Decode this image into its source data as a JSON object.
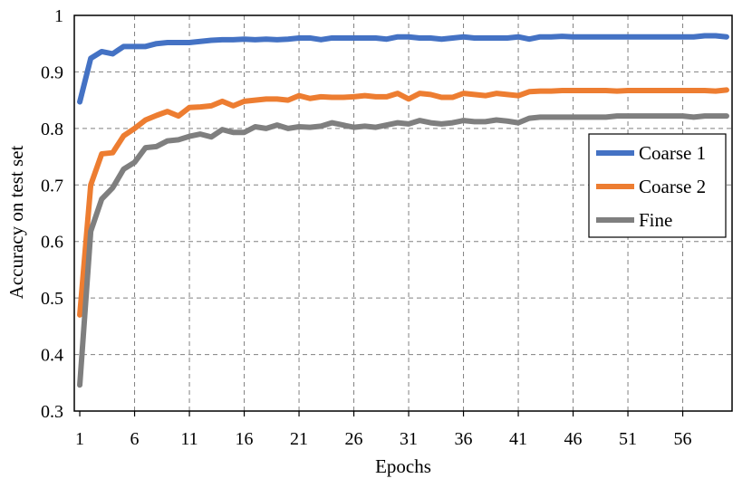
{
  "chart_data": {
    "type": "line",
    "xlabel": "Epochs",
    "ylabel": "Accuracy on test set",
    "x_ticks": [
      "1",
      "6",
      "11",
      "16",
      "21",
      "26",
      "31",
      "36",
      "41",
      "46",
      "51",
      "56"
    ],
    "y_ticks": [
      "0.3",
      "0.4",
      "0.5",
      "0.6",
      "0.7",
      "0.8",
      "0.9",
      "1"
    ],
    "xlim": [
      1,
      60
    ],
    "ylim": [
      0.3,
      1.0
    ],
    "grid": true,
    "legend_position": "right",
    "x": [
      1,
      2,
      3,
      4,
      5,
      6,
      7,
      8,
      9,
      10,
      11,
      12,
      13,
      14,
      15,
      16,
      17,
      18,
      19,
      20,
      21,
      22,
      23,
      24,
      25,
      26,
      27,
      28,
      29,
      30,
      31,
      32,
      33,
      34,
      35,
      36,
      37,
      38,
      39,
      40,
      41,
      42,
      43,
      44,
      45,
      46,
      47,
      48,
      49,
      50,
      51,
      52,
      53,
      54,
      55,
      56,
      57,
      58,
      59,
      60
    ],
    "series": [
      {
        "name": "Coarse 1",
        "color": "#4472C4",
        "values": [
          0.847,
          0.924,
          0.936,
          0.932,
          0.945,
          0.945,
          0.945,
          0.95,
          0.952,
          0.952,
          0.952,
          0.954,
          0.956,
          0.957,
          0.957,
          0.958,
          0.957,
          0.958,
          0.957,
          0.958,
          0.96,
          0.96,
          0.957,
          0.96,
          0.96,
          0.96,
          0.96,
          0.96,
          0.958,
          0.962,
          0.962,
          0.96,
          0.96,
          0.958,
          0.96,
          0.962,
          0.96,
          0.96,
          0.96,
          0.96,
          0.962,
          0.958,
          0.962,
          0.962,
          0.963,
          0.962,
          0.962,
          0.962,
          0.962,
          0.962,
          0.962,
          0.962,
          0.962,
          0.962,
          0.962,
          0.962,
          0.962,
          0.964,
          0.964,
          0.962
        ]
      },
      {
        "name": "Coarse 2",
        "color": "#ED7D31",
        "values": [
          0.47,
          0.7,
          0.755,
          0.757,
          0.787,
          0.8,
          0.815,
          0.823,
          0.83,
          0.822,
          0.837,
          0.838,
          0.84,
          0.848,
          0.84,
          0.848,
          0.85,
          0.852,
          0.852,
          0.85,
          0.858,
          0.853,
          0.856,
          0.855,
          0.855,
          0.856,
          0.858,
          0.856,
          0.856,
          0.862,
          0.852,
          0.862,
          0.86,
          0.855,
          0.855,
          0.862,
          0.86,
          0.858,
          0.862,
          0.86,
          0.858,
          0.865,
          0.866,
          0.866,
          0.867,
          0.867,
          0.867,
          0.867,
          0.867,
          0.866,
          0.867,
          0.867,
          0.867,
          0.867,
          0.867,
          0.867,
          0.867,
          0.867,
          0.866,
          0.868
        ]
      },
      {
        "name": "Fine",
        "color": "#7F7F7F",
        "values": [
          0.346,
          0.618,
          0.675,
          0.695,
          0.728,
          0.74,
          0.766,
          0.768,
          0.778,
          0.78,
          0.786,
          0.79,
          0.785,
          0.798,
          0.793,
          0.793,
          0.803,
          0.8,
          0.806,
          0.8,
          0.803,
          0.802,
          0.804,
          0.81,
          0.806,
          0.802,
          0.804,
          0.802,
          0.806,
          0.81,
          0.808,
          0.814,
          0.81,
          0.808,
          0.81,
          0.814,
          0.812,
          0.812,
          0.815,
          0.813,
          0.81,
          0.818,
          0.82,
          0.82,
          0.82,
          0.82,
          0.82,
          0.82,
          0.82,
          0.822,
          0.822,
          0.822,
          0.822,
          0.822,
          0.822,
          0.822,
          0.82,
          0.822,
          0.822,
          0.822
        ]
      }
    ]
  }
}
